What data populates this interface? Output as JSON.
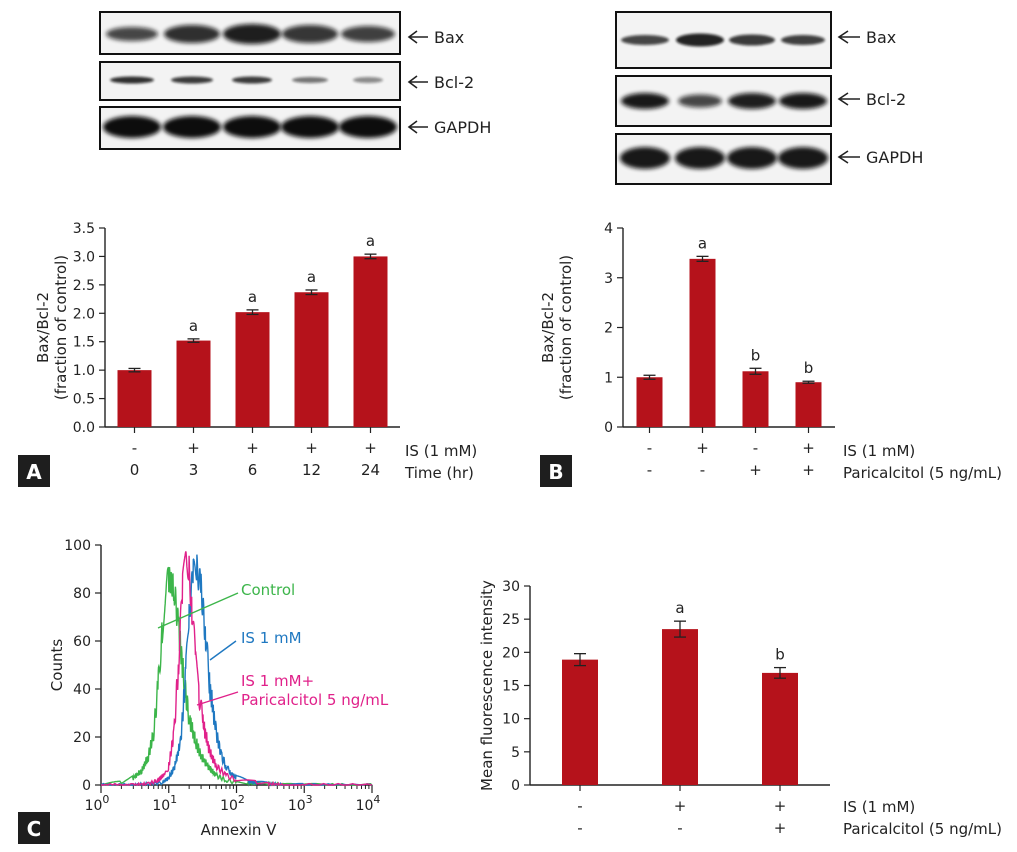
{
  "colors": {
    "bar": "#b5121b",
    "control": "#3cb54a",
    "is": "#1f78c1",
    "is_para": "#e0218a",
    "panel_box": "#1e1e1e"
  },
  "panel_a": {
    "panel_label": "A",
    "blots": [
      "Bax",
      "Bcl-2",
      "GAPDH"
    ],
    "row_is": "IS (1 mM)",
    "row_time": "Time (hr)"
  },
  "panel_b": {
    "panel_label": "B",
    "blots": [
      "Bax",
      "Bcl-2",
      "GAPDH"
    ],
    "row_is": "IS (1 mM)",
    "row_para": "Paricalcitol (5 ng/mL)"
  },
  "panel_c": {
    "panel_label": "C",
    "row_is": "IS (1 mM)",
    "row_para": "Paricalcitol (5 ng/mL)"
  },
  "chart_data": [
    {
      "type": "bar",
      "id": "A",
      "ylabel": [
        "Bax/Bcl-2",
        "(fraction of control)"
      ],
      "ylim": [
        0,
        3.5
      ],
      "yticks": [
        "0.0",
        "0.5",
        "1.0",
        "1.5",
        "2.0",
        "2.5",
        "3.0",
        "3.5"
      ],
      "yticks_values": [
        0,
        0.5,
        1,
        1.5,
        2,
        2.5,
        3,
        3.5
      ],
      "categories": [
        "0",
        "3",
        "6",
        "12",
        "24"
      ],
      "is": [
        "-",
        "+",
        "+",
        "+",
        "+"
      ],
      "time": [
        "0",
        "3",
        "6",
        "12",
        "24"
      ],
      "values": [
        1.0,
        1.52,
        2.02,
        2.37,
        3.0
      ],
      "errors": [
        0.03,
        0.03,
        0.04,
        0.04,
        0.04
      ],
      "sig": [
        "",
        "a",
        "a",
        "a",
        "a"
      ]
    },
    {
      "type": "bar",
      "id": "B",
      "ylabel": [
        "Bax/Bcl-2",
        "(fraction of control)"
      ],
      "ylim": [
        0,
        4
      ],
      "yticks": [
        "0",
        "1",
        "2",
        "3",
        "4"
      ],
      "yticks_values": [
        0,
        1,
        2,
        3,
        4
      ],
      "is": [
        "-",
        "+",
        "-",
        "+"
      ],
      "para": [
        "-",
        "-",
        "+",
        "+"
      ],
      "values": [
        1.0,
        3.38,
        1.12,
        0.9
      ],
      "errors": [
        0.04,
        0.05,
        0.06,
        0.02
      ],
      "sig": [
        "",
        "a",
        "b",
        "b"
      ]
    },
    {
      "type": "line",
      "id": "C-histogram",
      "xlabel": "Annexin V",
      "ylabel": "Counts",
      "xscale": "log",
      "xlim": [
        1,
        10000
      ],
      "ylim": [
        0,
        100
      ],
      "xticks_base": [
        "10",
        "10",
        "10",
        "10",
        "10"
      ],
      "xticks_exp": [
        "0",
        "1",
        "2",
        "3",
        "4"
      ],
      "yticks": [
        "0",
        "20",
        "40",
        "60",
        "80",
        "100"
      ],
      "yticks_values": [
        0,
        20,
        40,
        60,
        80,
        100
      ],
      "series": [
        {
          "name": "Control",
          "key": "control",
          "x": [
            1,
            2,
            3,
            4,
            5,
            6,
            7,
            8,
            9,
            10,
            12,
            14,
            17,
            20,
            25,
            30,
            40,
            50,
            70,
            100,
            150,
            200,
            300,
            500,
            1000,
            2000,
            5000,
            10000
          ],
          "y": [
            0,
            1,
            3,
            6,
            12,
            22,
            42,
            65,
            80,
            86,
            82,
            65,
            42,
            28,
            18,
            12,
            7,
            4,
            2,
            1,
            1,
            0.5,
            0.5,
            0,
            0,
            0,
            0,
            0
          ]
        },
        {
          "name": "IS 1 mM",
          "key": "is",
          "x": [
            1,
            3,
            5,
            8,
            10,
            12,
            15,
            18,
            20,
            23,
            26,
            30,
            35,
            40,
            50,
            60,
            70,
            80,
            100,
            150,
            200,
            300,
            500,
            1000,
            10000
          ],
          "y": [
            0,
            0,
            0.5,
            1,
            3,
            7,
            18,
            48,
            72,
            88,
            90,
            82,
            62,
            42,
            22,
            12,
            8,
            5,
            3,
            1.5,
            1,
            0.5,
            0,
            0,
            0
          ]
        },
        {
          "name": "IS 1 mM+ Paricalcitol 5 ng/mL",
          "key": "is_para",
          "x": [
            1,
            3,
            5,
            7,
            9,
            10,
            12,
            14,
            16,
            18,
            20,
            22,
            25,
            28,
            32,
            40,
            50,
            70,
            100,
            200,
            300,
            500,
            1000,
            10000
          ],
          "y": [
            0,
            0,
            0.5,
            2,
            5,
            8,
            22,
            52,
            82,
            96,
            90,
            72,
            52,
            38,
            26,
            14,
            8,
            4,
            2,
            1,
            0.5,
            0,
            0,
            0
          ]
        }
      ],
      "legend_labels": [
        "Control",
        "IS 1 mM",
        "IS 1 mM+",
        "Paricalcitol 5 ng/mL"
      ]
    },
    {
      "type": "bar",
      "id": "C-mfi",
      "ylabel": "Mean fluorescence intensity",
      "ylim": [
        0,
        30
      ],
      "yticks": [
        "0",
        "5",
        "10",
        "15",
        "20",
        "25",
        "30"
      ],
      "yticks_values": [
        0,
        5,
        10,
        15,
        20,
        25,
        30
      ],
      "is": [
        "-",
        "+",
        "+"
      ],
      "para": [
        "-",
        "-",
        "+"
      ],
      "values": [
        18.9,
        23.5,
        16.9
      ],
      "errors": [
        0.9,
        1.2,
        0.8
      ],
      "sig": [
        "",
        "a",
        "b"
      ]
    }
  ]
}
